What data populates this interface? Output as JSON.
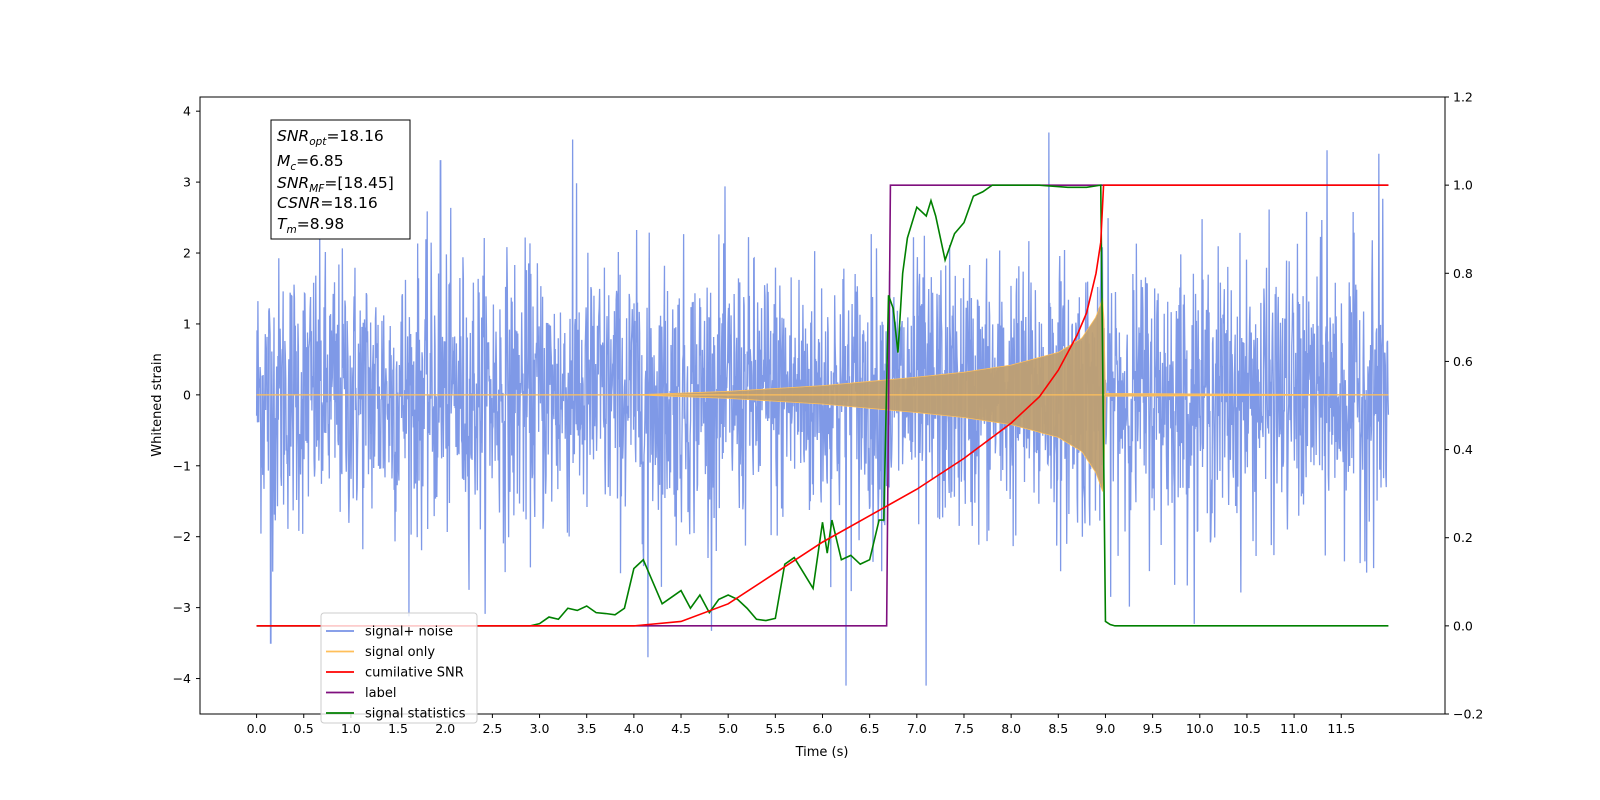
{
  "chart_data": {
    "type": "line",
    "xlabel": "Time (s)",
    "ylabel": "Whitened strain",
    "xlim": [
      -0.6,
      12.6
    ],
    "ylim": [
      -4.5,
      4.2
    ],
    "ylim_right": [
      -0.2,
      1.2
    ],
    "grid": false,
    "legend_placement": "lower-left",
    "x_ticks": [
      0.0,
      0.5,
      1.0,
      1.5,
      2.0,
      2.5,
      3.0,
      3.5,
      4.0,
      4.5,
      5.0,
      5.5,
      6.0,
      6.5,
      7.0,
      7.5,
      8.0,
      8.5,
      9.0,
      9.5,
      10.0,
      10.5,
      11.0,
      11.5
    ],
    "x_tick_labels": [
      "0.0",
      "0.5",
      "1.0",
      "1.5",
      "2.0",
      "2.5",
      "3.0",
      "3.5",
      "4.0",
      "4.5",
      "5.0",
      "5.5",
      "6.0",
      "6.5",
      "7.0",
      "7.5",
      "8.0",
      "8.5",
      "9.0",
      "9.5",
      "10.0",
      "10.5",
      "11.0",
      "11.5"
    ],
    "y_ticks": [
      -4,
      -3,
      -2,
      -1,
      0,
      1,
      2,
      3,
      4
    ],
    "y_tick_labels": [
      "−4",
      "−3",
      "−2",
      "−1",
      "0",
      "1",
      "2",
      "3",
      "4"
    ],
    "y_ticks_right": [
      -0.2,
      0.0,
      0.2,
      0.4,
      0.6,
      0.8,
      1.0,
      1.2
    ],
    "y_tick_labels_right": [
      "−0.2",
      "0.0",
      "0.2",
      "0.4",
      "0.6",
      "0.8",
      "1.0",
      "1.2"
    ],
    "stats_box": {
      "snr_opt": {
        "sym": "SNR",
        "sub": "opt",
        "val": "=18.16"
      },
      "mc": {
        "sym": "M",
        "sub": "c",
        "val": "=6.85"
      },
      "snr_mf": {
        "sym": "SNR",
        "sub": "MF",
        "val": "=[18.45]"
      },
      "csnr": {
        "sym": "CSNR",
        "sub": "",
        "val": "=18.16"
      },
      "tm": {
        "sym": "T",
        "sub": "m",
        "val": "=8.98"
      }
    },
    "series": [
      {
        "name": "signal+ noise",
        "axis": "left",
        "color": "#7893e6",
        "time_range": [
          0.0,
          12.0
        ],
        "noise_std": 0.95,
        "notable_peaks": [
          {
            "x": 0.15,
            "y": -3.5
          },
          {
            "x": 3.35,
            "y": 3.6
          },
          {
            "x": 4.15,
            "y": -3.7
          },
          {
            "x": 6.25,
            "y": -4.1
          },
          {
            "x": 7.1,
            "y": -4.1
          },
          {
            "x": 8.4,
            "y": 3.7
          },
          {
            "x": 11.35,
            "y": 3.45
          },
          {
            "x": 11.9,
            "y": 3.4
          },
          {
            "x": 1.95,
            "y": 3.3
          }
        ]
      },
      {
        "name": "signal only",
        "axis": "left",
        "color": "#ffbf5a",
        "chirp_envelope": [
          {
            "x": 0.0,
            "y": 0.0
          },
          {
            "x": 4.0,
            "y": 0.0
          },
          {
            "x": 5.0,
            "y": 0.05
          },
          {
            "x": 6.0,
            "y": 0.13
          },
          {
            "x": 7.0,
            "y": 0.25
          },
          {
            "x": 7.5,
            "y": 0.32
          },
          {
            "x": 8.0,
            "y": 0.42
          },
          {
            "x": 8.5,
            "y": 0.6
          },
          {
            "x": 8.75,
            "y": 0.8
          },
          {
            "x": 8.9,
            "y": 1.1
          },
          {
            "x": 8.98,
            "y": 1.4
          },
          {
            "x": 9.0,
            "y": 0.02
          },
          {
            "x": 12.0,
            "y": 0.0
          }
        ]
      },
      {
        "name": "cumilative SNR",
        "axis": "right",
        "color": "#ff0000",
        "x": [
          0.0,
          3.0,
          4.0,
          4.5,
          5.0,
          5.5,
          6.0,
          6.5,
          7.0,
          7.5,
          8.0,
          8.3,
          8.5,
          8.7,
          8.8,
          8.9,
          8.95,
          8.98,
          9.0,
          12.0
        ],
        "values": [
          0.0,
          0.0,
          0.0,
          0.01,
          0.05,
          0.12,
          0.19,
          0.25,
          0.31,
          0.38,
          0.46,
          0.52,
          0.58,
          0.66,
          0.71,
          0.8,
          0.87,
          1.0,
          1.0,
          1.0
        ]
      },
      {
        "name": "label",
        "axis": "right",
        "color": "#7f0f7e",
        "x": [
          0.0,
          6.68,
          6.72,
          8.98,
          9.0,
          12.0
        ],
        "values": [
          0.0,
          0.0,
          1.0,
          1.0,
          1.0,
          1.0
        ]
      },
      {
        "name": "signal statistics",
        "axis": "right",
        "color": "#008000",
        "x": [
          0.0,
          2.9,
          3.0,
          3.1,
          3.2,
          3.3,
          3.4,
          3.5,
          3.6,
          3.7,
          3.8,
          3.9,
          4.0,
          4.1,
          4.2,
          4.3,
          4.4,
          4.5,
          4.6,
          4.7,
          4.8,
          4.9,
          5.0,
          5.1,
          5.2,
          5.3,
          5.4,
          5.5,
          5.6,
          5.7,
          5.8,
          5.9,
          6.0,
          6.05,
          6.1,
          6.2,
          6.3,
          6.4,
          6.5,
          6.6,
          6.65,
          6.7,
          6.75,
          6.8,
          6.85,
          6.9,
          7.0,
          7.1,
          7.15,
          7.2,
          7.3,
          7.4,
          7.5,
          7.6,
          7.7,
          7.8,
          7.9,
          8.0,
          8.3,
          8.6,
          8.8,
          8.95,
          9.0,
          9.05,
          9.1,
          12.0
        ],
        "values": [
          0.0,
          0.0,
          0.005,
          0.02,
          0.015,
          0.04,
          0.035,
          0.045,
          0.03,
          0.028,
          0.025,
          0.04,
          0.13,
          0.15,
          0.1,
          0.05,
          0.065,
          0.08,
          0.04,
          0.07,
          0.03,
          0.06,
          0.07,
          0.06,
          0.04,
          0.015,
          0.012,
          0.017,
          0.14,
          0.155,
          0.12,
          0.085,
          0.235,
          0.165,
          0.24,
          0.15,
          0.16,
          0.14,
          0.15,
          0.24,
          0.24,
          0.75,
          0.72,
          0.62,
          0.8,
          0.88,
          0.95,
          0.93,
          0.965,
          0.93,
          0.83,
          0.89,
          0.915,
          0.975,
          0.985,
          1.0,
          1.0,
          1.0,
          1.0,
          0.995,
          0.995,
          1.0,
          0.01,
          0.003,
          0.0,
          0.0
        ]
      }
    ]
  }
}
